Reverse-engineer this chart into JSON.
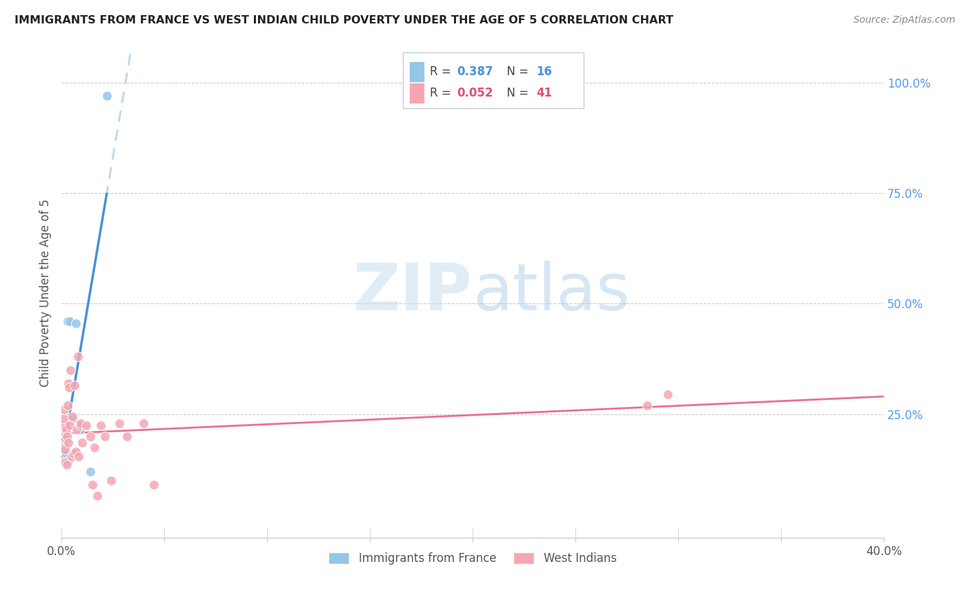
{
  "title": "IMMIGRANTS FROM FRANCE VS WEST INDIAN CHILD POVERTY UNDER THE AGE OF 5 CORRELATION CHART",
  "source": "Source: ZipAtlas.com",
  "ylabel": "Child Poverty Under the Age of 5",
  "ylabel_right_ticks": [
    "100.0%",
    "75.0%",
    "50.0%",
    "25.0%"
  ],
  "ylabel_right_vals": [
    1.0,
    0.75,
    0.5,
    0.25
  ],
  "xlim": [
    0.0,
    0.4
  ],
  "ylim": [
    -0.03,
    1.08
  ],
  "watermark_zip": "ZIP",
  "watermark_atlas": "atlas",
  "france_R": 0.387,
  "france_N": 16,
  "west_indian_R": 0.052,
  "west_indian_N": 41,
  "france_x": [
    0.0008,
    0.001,
    0.0012,
    0.0015,
    0.0018,
    0.002,
    0.0022,
    0.0025,
    0.003,
    0.0035,
    0.004,
    0.0055,
    0.007,
    0.009,
    0.014,
    0.022
  ],
  "france_y": [
    0.185,
    0.195,
    0.215,
    0.165,
    0.175,
    0.145,
    0.16,
    0.205,
    0.46,
    0.145,
    0.46,
    0.24,
    0.455,
    0.215,
    0.12,
    0.97
  ],
  "west_indian_x": [
    0.0005,
    0.0008,
    0.001,
    0.0012,
    0.0015,
    0.0018,
    0.002,
    0.0022,
    0.0025,
    0.0028,
    0.003,
    0.0032,
    0.0035,
    0.0038,
    0.004,
    0.0045,
    0.005,
    0.0055,
    0.006,
    0.0065,
    0.007,
    0.0075,
    0.008,
    0.0085,
    0.009,
    0.0095,
    0.01,
    0.012,
    0.014,
    0.015,
    0.016,
    0.0175,
    0.019,
    0.021,
    0.024,
    0.028,
    0.032,
    0.04,
    0.045,
    0.285,
    0.295
  ],
  "west_indian_y": [
    0.2,
    0.22,
    0.24,
    0.26,
    0.14,
    0.17,
    0.195,
    0.215,
    0.135,
    0.2,
    0.27,
    0.32,
    0.185,
    0.31,
    0.225,
    0.35,
    0.155,
    0.245,
    0.16,
    0.315,
    0.165,
    0.215,
    0.38,
    0.155,
    0.225,
    0.23,
    0.185,
    0.225,
    0.2,
    0.09,
    0.175,
    0.065,
    0.225,
    0.2,
    0.1,
    0.23,
    0.2,
    0.23,
    0.09,
    0.27,
    0.295
  ],
  "france_color": "#94c6e7",
  "west_indian_color": "#f4a7b2",
  "france_line_color": "#4a90d9",
  "west_indian_line_color": "#e87090",
  "trendline_ext_color": "#b8d8ee",
  "legend_france_label": "Immigrants from France",
  "legend_west_indian_label": "West Indians",
  "background_color": "#ffffff",
  "grid_color": "#cccccc",
  "france_R_color": "#4a90d9",
  "west_indian_R_color": "#e05070",
  "xtick_vals": [
    0.0,
    0.05,
    0.1,
    0.15,
    0.2,
    0.25,
    0.3,
    0.35,
    0.4
  ]
}
